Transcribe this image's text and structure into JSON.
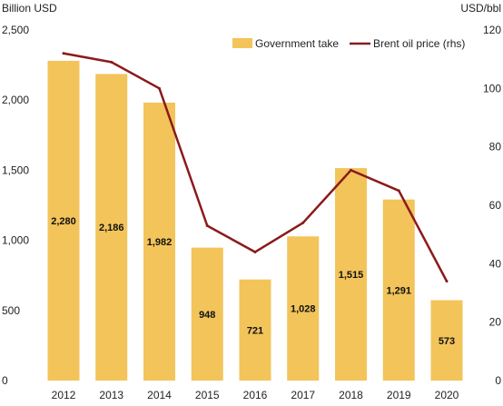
{
  "chart_data": {
    "type": "bar",
    "categories": [
      "2012",
      "2013",
      "2014",
      "2015",
      "2016",
      "2017",
      "2018",
      "2019",
      "2020"
    ],
    "series": [
      {
        "name": "Government take",
        "type": "bar",
        "axis": "left",
        "color": "#F2C45A",
        "values": [
          2280,
          2186,
          1982,
          948,
          721,
          1028,
          1515,
          1291,
          573
        ],
        "data_labels": [
          "2,280",
          "2,186",
          "1,982",
          "948",
          "721",
          "1,028",
          "1,515",
          "1,291",
          "573"
        ]
      },
      {
        "name": "Brent oil price (rhs)",
        "type": "line",
        "axis": "right",
        "color": "#8B1A1A",
        "values": [
          112,
          109,
          100,
          53,
          44,
          54,
          72,
          65,
          34
        ]
      }
    ],
    "y_left": {
      "unit_label": "Billion USD",
      "range": [
        0,
        2500
      ],
      "ticks": [
        0,
        500,
        1000,
        1500,
        2000,
        2500
      ],
      "tick_labels": [
        "0",
        "500",
        "1,000",
        "1,500",
        "2,000",
        "2,500"
      ]
    },
    "y_right": {
      "unit_label": "USD/bbl",
      "range": [
        0,
        120
      ],
      "ticks": [
        0,
        20,
        40,
        60,
        80,
        100,
        120
      ],
      "tick_labels": [
        "0",
        "20",
        "40",
        "60",
        "80",
        "100",
        "120"
      ]
    },
    "legend": {
      "placement": "top-right",
      "items": [
        "Government take",
        "Brent oil price (rhs)"
      ]
    },
    "grid": false
  }
}
